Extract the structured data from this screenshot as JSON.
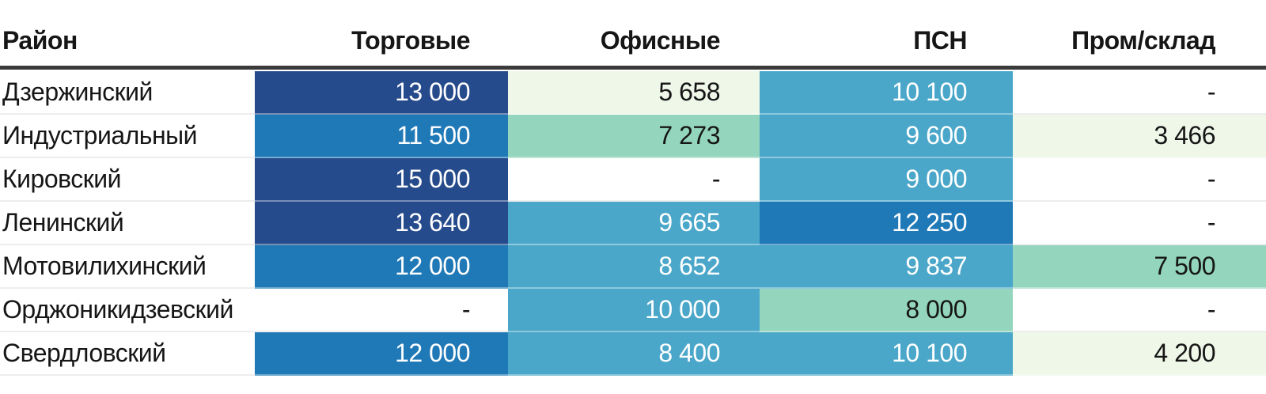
{
  "palette": {
    "header_rule": "#3a3a3a",
    "dark_navy": "#264b8c",
    "medium_blue": "#2079b7",
    "light_blue": "#4aa7c9",
    "teal_green": "#93d5bd",
    "light_green": "#eef7e8",
    "white_cell": "#ffffff",
    "text_dark": "#161616",
    "text_light": "#ffffff"
  },
  "table": {
    "columns": [
      {
        "label": "Район"
      },
      {
        "label": "Торговые"
      },
      {
        "label": "Офисные"
      },
      {
        "label": "ПСН"
      },
      {
        "label": "Пром/склад"
      }
    ],
    "rows": [
      {
        "district": "Дзержинский",
        "cells": [
          {
            "v": "13 000",
            "bg": "#264b8c",
            "fg": "#ffffff",
            "variant": "fill"
          },
          {
            "v": "5 658",
            "bg": "#eef7e8",
            "fg": "#161616",
            "variant": "fill"
          },
          {
            "v": "10 100",
            "bg": "#4aa7c9",
            "fg": "#ffffff",
            "variant": "fill"
          },
          {
            "v": "-",
            "bg": "#ffffff",
            "fg": "#161616",
            "variant": "plain"
          }
        ]
      },
      {
        "district": "Индустриальный",
        "cells": [
          {
            "v": "11 500",
            "bg": "#2079b7",
            "fg": "#ffffff",
            "variant": "fill"
          },
          {
            "v": "7 273",
            "bg": "#93d5bd",
            "fg": "#161616",
            "variant": "fill"
          },
          {
            "v": "9 600",
            "bg": "#4aa7c9",
            "fg": "#ffffff",
            "variant": "fill"
          },
          {
            "v": "3 466",
            "bg": "#eef7e8",
            "fg": "#161616",
            "variant": "fill"
          }
        ]
      },
      {
        "district": "Кировский",
        "cells": [
          {
            "v": "15 000",
            "bg": "#264b8c",
            "fg": "#ffffff",
            "variant": "fill"
          },
          {
            "v": "-",
            "bg": "#ffffff",
            "fg": "#161616",
            "variant": "plain"
          },
          {
            "v": "9 000",
            "bg": "#4aa7c9",
            "fg": "#ffffff",
            "variant": "fill"
          },
          {
            "v": "-",
            "bg": "#ffffff",
            "fg": "#161616",
            "variant": "plain"
          }
        ]
      },
      {
        "district": "Ленинский",
        "cells": [
          {
            "v": "13 640",
            "bg": "#264b8c",
            "fg": "#ffffff",
            "variant": "fill"
          },
          {
            "v": "9 665",
            "bg": "#4aa7c9",
            "fg": "#ffffff",
            "variant": "fill"
          },
          {
            "v": "12 250",
            "bg": "#2079b7",
            "fg": "#ffffff",
            "variant": "fill"
          },
          {
            "v": "-",
            "bg": "#ffffff",
            "fg": "#161616",
            "variant": "plain"
          }
        ]
      },
      {
        "district": "Мотовилихинский",
        "cells": [
          {
            "v": "12 000",
            "bg": "#2079b7",
            "fg": "#ffffff",
            "variant": "fill"
          },
          {
            "v": "8 652",
            "bg": "#4aa7c9",
            "fg": "#ffffff",
            "variant": "fill"
          },
          {
            "v": "9 837",
            "bg": "#4aa7c9",
            "fg": "#ffffff",
            "variant": "fill"
          },
          {
            "v": "7 500",
            "bg": "#93d5bd",
            "fg": "#161616",
            "variant": "fill"
          }
        ]
      },
      {
        "district": "Орджоникидзевский",
        "cells": [
          {
            "v": "-",
            "bg": "#ffffff",
            "fg": "#161616",
            "variant": "plain"
          },
          {
            "v": "10 000",
            "bg": "#4aa7c9",
            "fg": "#ffffff",
            "variant": "fill"
          },
          {
            "v": "8 000",
            "bg": "#93d5bd",
            "fg": "#161616",
            "variant": "fill"
          },
          {
            "v": "-",
            "bg": "#ffffff",
            "fg": "#161616",
            "variant": "plain"
          }
        ]
      },
      {
        "district": "Свердловский",
        "cells": [
          {
            "v": "12 000",
            "bg": "#2079b7",
            "fg": "#ffffff",
            "variant": "fill"
          },
          {
            "v": "8 400",
            "bg": "#4aa7c9",
            "fg": "#ffffff",
            "variant": "fill"
          },
          {
            "v": "10 100",
            "bg": "#4aa7c9",
            "fg": "#ffffff",
            "variant": "fill"
          },
          {
            "v": "4 200",
            "bg": "#eef7e8",
            "fg": "#161616",
            "variant": "fill"
          }
        ]
      }
    ]
  },
  "chart_data": {
    "type": "heatmap",
    "title": "",
    "row_header": "Район",
    "columns": [
      "Торговые",
      "Офисные",
      "ПСН",
      "Пром/склад"
    ],
    "rows": [
      "Дзержинский",
      "Индустриальный",
      "Кировский",
      "Ленинский",
      "Мотовилихинский",
      "Орджоникидзевский",
      "Свердловский"
    ],
    "values": [
      [
        13000,
        5658,
        10100,
        null
      ],
      [
        11500,
        7273,
        9600,
        3466
      ],
      [
        15000,
        null,
        9000,
        null
      ],
      [
        13640,
        9665,
        12250,
        null
      ],
      [
        12000,
        8652,
        9837,
        7500
      ],
      [
        null,
        10000,
        8000,
        null
      ],
      [
        12000,
        8400,
        10100,
        4200
      ]
    ],
    "color_scale": {
      "high": "#264b8c",
      "mid_high": "#2079b7",
      "mid": "#4aa7c9",
      "mid_low": "#93d5bd",
      "low": "#eef7e8",
      "missing": "#ffffff"
    },
    "legend_position": "none",
    "grid": false
  }
}
